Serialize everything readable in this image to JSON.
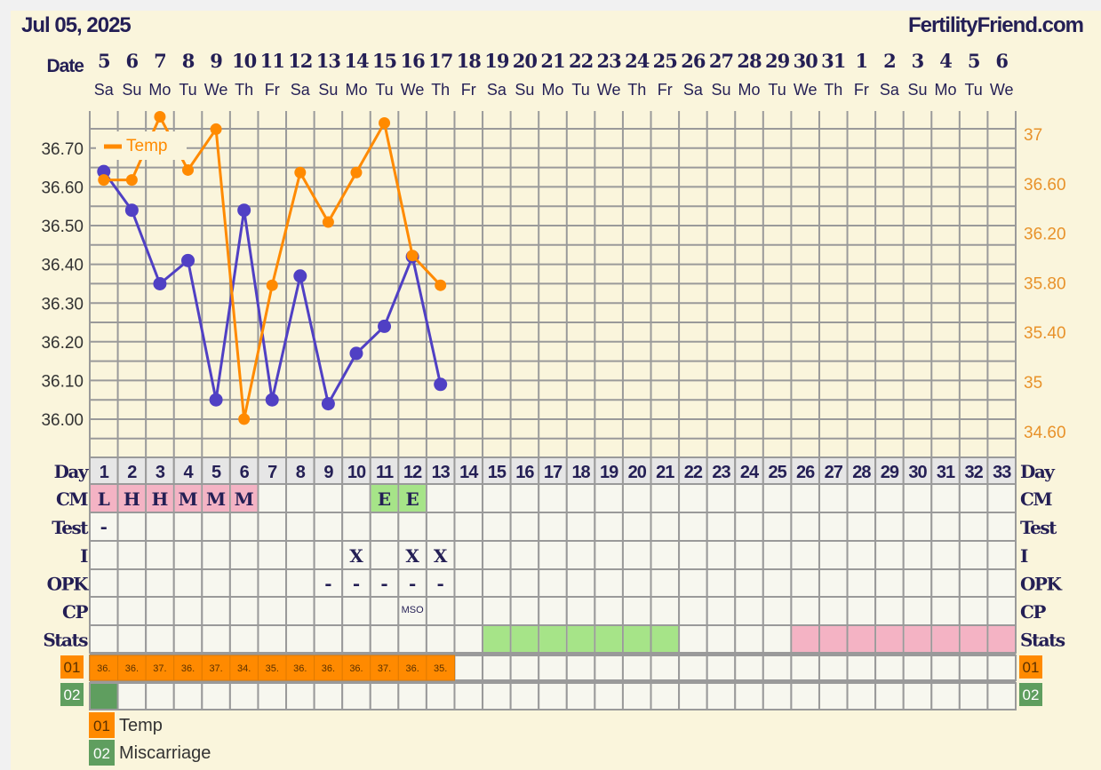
{
  "header": {
    "date_title": "Jul 05, 2025",
    "site": "FertilityFriend.com"
  },
  "colors": {
    "bg": "#faf5dc",
    "navy": "#241f55",
    "purple": "#5040c4",
    "orange": "#ff8a00",
    "pink": "#f4b3c4",
    "green": "#a6e488",
    "dark_green": "#5f9e5f",
    "grid": "#9a9a9a",
    "cell": "#f7f7ef"
  },
  "row_labels": {
    "date": "Date",
    "day": "Day",
    "cm": "CM",
    "test": "Test",
    "i": "I",
    "opk": "OPK",
    "cp": "CP",
    "stats": "Stats",
    "r01": "01",
    "r02": "02"
  },
  "dates": [
    "5",
    "6",
    "7",
    "8",
    "9",
    "10",
    "11",
    "12",
    "13",
    "14",
    "15",
    "16",
    "17",
    "18",
    "19",
    "20",
    "21",
    "22",
    "23",
    "24",
    "25",
    "26",
    "27",
    "28",
    "29",
    "30",
    "31",
    "1",
    "2",
    "3",
    "4",
    "5",
    "6"
  ],
  "weekdays": [
    "Sa",
    "Su",
    "Mo",
    "Tu",
    "We",
    "Th",
    "Fr",
    "Sa",
    "Su",
    "Mo",
    "Tu",
    "We",
    "Th",
    "Fr",
    "Sa",
    "Su",
    "Mo",
    "Tu",
    "We",
    "Th",
    "Fr",
    "Sa",
    "Su",
    "Mo",
    "Tu",
    "We",
    "Th",
    "Fr",
    "Sa",
    "Su",
    "Mo",
    "Tu",
    "We"
  ],
  "days": [
    "1",
    "2",
    "3",
    "4",
    "5",
    "6",
    "7",
    "8",
    "9",
    "10",
    "11",
    "12",
    "13",
    "14",
    "15",
    "16",
    "17",
    "18",
    "19",
    "20",
    "21",
    "22",
    "23",
    "24",
    "25",
    "26",
    "27",
    "28",
    "29",
    "30",
    "31",
    "32",
    "33"
  ],
  "cm": [
    {
      "day": 1,
      "v": "L",
      "color": "pink"
    },
    {
      "day": 2,
      "v": "H",
      "color": "pink"
    },
    {
      "day": 3,
      "v": "H",
      "color": "pink"
    },
    {
      "day": 4,
      "v": "M",
      "color": "pink"
    },
    {
      "day": 5,
      "v": "M",
      "color": "pink"
    },
    {
      "day": 6,
      "v": "M",
      "color": "pink"
    },
    {
      "day": 11,
      "v": "E",
      "color": "green"
    },
    {
      "day": 12,
      "v": "E",
      "color": "green"
    }
  ],
  "test": [
    {
      "day": 1,
      "v": "-"
    }
  ],
  "intercourse": [
    {
      "day": 10,
      "v": "X"
    },
    {
      "day": 12,
      "v": "X"
    },
    {
      "day": 13,
      "v": "X"
    }
  ],
  "opk": [
    {
      "day": 9,
      "v": "-"
    },
    {
      "day": 10,
      "v": "-"
    },
    {
      "day": 11,
      "v": "-"
    },
    {
      "day": 12,
      "v": "-"
    },
    {
      "day": 13,
      "v": "-"
    }
  ],
  "cp": [
    {
      "day": 12,
      "v": "MSO"
    }
  ],
  "stats": {
    "green_days": [
      15,
      16,
      17,
      18,
      19,
      20,
      21
    ],
    "pink_days": [
      26,
      27,
      28,
      29,
      30,
      31,
      32,
      33
    ]
  },
  "row01_values": [
    "36.",
    "36.",
    "37.",
    "36.",
    "37.",
    "34.",
    "35.",
    "36.",
    "36.",
    "36.",
    "37.",
    "36.",
    "35."
  ],
  "row02_days": [
    1
  ],
  "legend": [
    {
      "code": "01",
      "label": "Temp",
      "color": "orange"
    },
    {
      "code": "02",
      "label": "Miscarriage",
      "color": "dark_green"
    }
  ],
  "chart_data": {
    "type": "line",
    "x": [
      1,
      2,
      3,
      4,
      5,
      6,
      7,
      8,
      9,
      10,
      11,
      12,
      13
    ],
    "left_axis": {
      "ticks": [
        "36.00",
        "36.10",
        "36.20",
        "36.30",
        "36.40",
        "36.50",
        "36.60",
        "36.70"
      ],
      "ylim": [
        35.94,
        36.83
      ]
    },
    "right_axis": {
      "ticks": [
        "34.60",
        "35",
        "35.40",
        "35.80",
        "36.20",
        "36.60",
        "37"
      ],
      "ylim": [
        34.45,
        37.18
      ]
    },
    "series": [
      {
        "axis": "left",
        "color": "purple",
        "values": [
          36.64,
          36.54,
          36.35,
          36.41,
          36.05,
          36.54,
          36.05,
          36.37,
          36.04,
          36.17,
          36.24,
          36.42,
          36.09
        ]
      },
      {
        "name": "Temp",
        "axis": "right",
        "color": "orange",
        "values": [
          36.63,
          36.63,
          37.14,
          36.71,
          37.04,
          34.7,
          35.78,
          36.69,
          36.29,
          36.69,
          37.09,
          36.02,
          35.78
        ]
      }
    ],
    "legend_position": "top-left",
    "grid": true
  }
}
